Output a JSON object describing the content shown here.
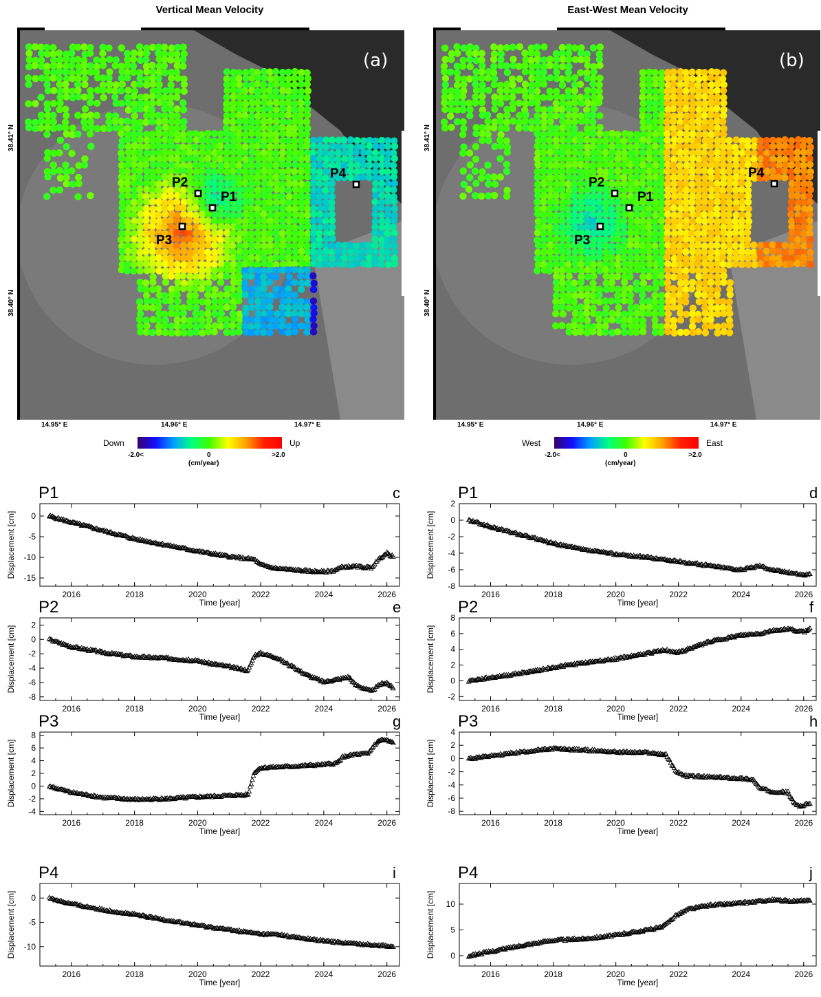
{
  "maps": [
    {
      "title": "Vertical Mean Velocity",
      "panel": "(a)",
      "lat_labels": [
        "38.41° N",
        "38.40° N"
      ],
      "lon_labels": [
        "14.95° E",
        "14.96° E",
        "14.97° E"
      ],
      "points": [
        "P1",
        "P2",
        "P3",
        "P4"
      ],
      "colorbar": {
        "left": "Down",
        "right": "Up",
        "min": "-2.0<",
        "mid": "0",
        "max": ">2.0",
        "unit": "(cm/year)"
      }
    },
    {
      "title": "East-West Mean Velocity",
      "panel": "(b)",
      "lat_labels": [
        "38.41° N",
        "38.40° N"
      ],
      "lon_labels": [
        "14.95° E",
        "14.96° E",
        "14.97° E"
      ],
      "points": [
        "P1",
        "P2",
        "P3",
        "P4"
      ],
      "colorbar": {
        "left": "West",
        "right": "East",
        "min": "-2.0<",
        "mid": "0",
        "max": ">2.0",
        "unit": "(cm/year)"
      }
    }
  ],
  "chart_data": [
    {
      "type": "scatter",
      "point": "P1",
      "letter": "c",
      "ylabel": "Displacement [cm]",
      "xlabel": "Time [year]",
      "xlim": [
        2015,
        2026.4
      ],
      "ylim": [
        -17,
        3
      ],
      "yticks": [
        0,
        -5,
        -10,
        -15
      ],
      "xticks": [
        2016,
        2018,
        2020,
        2022,
        2024,
        2026
      ],
      "x": [
        2015.3,
        2016,
        2017,
        2018,
        2019,
        2020,
        2021,
        2021.8,
        2022,
        2022.5,
        2023,
        2023.5,
        2024,
        2024.3,
        2024.6,
        2025,
        2025.5,
        2025.8,
        2026,
        2026.2
      ],
      "y": [
        0,
        -1.5,
        -3.5,
        -5.5,
        -7,
        -8.5,
        -9.8,
        -10.5,
        -11.8,
        -12.7,
        -13,
        -13.3,
        -13.5,
        -13.2,
        -12.3,
        -12.2,
        -12.5,
        -10,
        -9,
        -9.8
      ]
    },
    {
      "type": "scatter",
      "point": "P1",
      "letter": "d",
      "ylabel": "Displacement [cm]",
      "xlabel": "Time [year]",
      "xlim": [
        2015,
        2026.4
      ],
      "ylim": [
        -8,
        2
      ],
      "yticks": [
        2,
        0,
        -2,
        -4,
        -6,
        -8
      ],
      "xticks": [
        2016,
        2018,
        2020,
        2022,
        2024,
        2026
      ],
      "x": [
        2015.3,
        2016,
        2017,
        2018,
        2019,
        2020,
        2021,
        2022,
        2023,
        2024,
        2024.6,
        2025,
        2025.5,
        2026,
        2026.2
      ],
      "y": [
        0,
        -0.8,
        -1.8,
        -2.8,
        -3.6,
        -4.1,
        -4.5,
        -5,
        -5.5,
        -6,
        -5.5,
        -6,
        -6.3,
        -6.6,
        -6.5
      ]
    },
    {
      "type": "scatter",
      "point": "P2",
      "letter": "e",
      "ylabel": "Displacement [cm]",
      "xlabel": "Time [year]",
      "xlim": [
        2015,
        2026.4
      ],
      "ylim": [
        -8.5,
        3
      ],
      "yticks": [
        2,
        0,
        -2,
        -4,
        -6,
        -8
      ],
      "xticks": [
        2016,
        2018,
        2020,
        2022,
        2024,
        2026
      ],
      "x": [
        2015.3,
        2016,
        2017,
        2018,
        2019,
        2020,
        2021,
        2021.6,
        2021.8,
        2022,
        2022.5,
        2023,
        2023.5,
        2024,
        2024.5,
        2024.8,
        2025,
        2025.5,
        2025.8,
        2026,
        2026.2
      ],
      "y": [
        0,
        -1,
        -1.8,
        -2.4,
        -2.6,
        -3,
        -3.8,
        -4.3,
        -2.2,
        -1.9,
        -2.5,
        -3.8,
        -5,
        -5.9,
        -5.5,
        -5.2,
        -6.3,
        -7.2,
        -6.2,
        -6,
        -6.8
      ]
    },
    {
      "type": "scatter",
      "point": "P2",
      "letter": "f",
      "ylabel": "Displacement [cm]",
      "xlabel": "Time [year]",
      "xlim": [
        2015,
        2026.4
      ],
      "ylim": [
        -2.5,
        8
      ],
      "yticks": [
        8,
        6,
        4,
        2,
        0,
        -2
      ],
      "xticks": [
        2016,
        2018,
        2020,
        2022,
        2024,
        2026
      ],
      "x": [
        2015.3,
        2016,
        2017,
        2018,
        2019,
        2020,
        2021,
        2021.6,
        2022,
        2023,
        2024,
        2024.6,
        2025,
        2025.5,
        2026,
        2026.2
      ],
      "y": [
        0,
        0.4,
        1,
        1.7,
        2.3,
        2.8,
        3.5,
        3.9,
        3.6,
        5,
        5.8,
        6,
        6.4,
        6.6,
        6.2,
        6.7
      ]
    },
    {
      "type": "scatter",
      "point": "P3",
      "letter": "g",
      "ylabel": "Displacement [cm]",
      "xlabel": "Time [year]",
      "xlim": [
        2015,
        2026.4
      ],
      "ylim": [
        -4.5,
        8.5
      ],
      "yticks": [
        8,
        6,
        4,
        2,
        0,
        -2,
        -4
      ],
      "xticks": [
        2016,
        2018,
        2020,
        2022,
        2024,
        2026
      ],
      "x": [
        2015.3,
        2016,
        2017,
        2018,
        2019,
        2020,
        2021,
        2021.6,
        2021.8,
        2022,
        2023,
        2024,
        2024.4,
        2024.6,
        2025,
        2025.4,
        2025.6,
        2025.8,
        2026,
        2026.2
      ],
      "y": [
        0,
        -1,
        -1.8,
        -2.1,
        -2,
        -1.7,
        -1.5,
        -1.3,
        2.2,
        2.9,
        3.1,
        3.4,
        3.6,
        4.6,
        5,
        5.1,
        6.5,
        7.3,
        7.2,
        6.8
      ]
    },
    {
      "type": "scatter",
      "point": "P3",
      "letter": "h",
      "ylabel": "Displacement [cm]",
      "xlabel": "Time [year]",
      "xlim": [
        2015,
        2026.4
      ],
      "ylim": [
        -8.5,
        4
      ],
      "yticks": [
        4,
        2,
        0,
        -2,
        -4,
        -6,
        -8
      ],
      "xticks": [
        2016,
        2018,
        2020,
        2022,
        2024,
        2026
      ],
      "x": [
        2015.3,
        2016,
        2017,
        2018,
        2019,
        2020,
        2021,
        2021.6,
        2021.9,
        2022.2,
        2023,
        2024,
        2024.4,
        2024.6,
        2025,
        2025.5,
        2025.7,
        2025.9,
        2026.2
      ],
      "y": [
        0,
        0.4,
        1,
        1.5,
        1.3,
        1,
        0.9,
        0.6,
        -1.8,
        -2.6,
        -2.8,
        -3,
        -3.2,
        -4.5,
        -5,
        -5.1,
        -6.8,
        -7.2,
        -6.8
      ]
    },
    {
      "type": "scatter",
      "point": "P4",
      "letter": "i",
      "ylabel": "Displacement [cm]",
      "xlabel": "Time [year]",
      "xlim": [
        2015,
        2026.4
      ],
      "ylim": [
        -14,
        3
      ],
      "yticks": [
        0,
        -5,
        -10
      ],
      "xticks": [
        2016,
        2018,
        2020,
        2022,
        2024,
        2026
      ],
      "x": [
        2015.3,
        2016,
        2017,
        2018,
        2019,
        2020,
        2021,
        2022,
        2022.6,
        2023,
        2024,
        2025,
        2026,
        2026.2
      ],
      "y": [
        0,
        -1.2,
        -2.4,
        -3.4,
        -4.5,
        -5.6,
        -6.5,
        -7.4,
        -7.5,
        -8,
        -8.8,
        -9.4,
        -9.8,
        -10
      ]
    },
    {
      "type": "scatter",
      "point": "P4",
      "letter": "j",
      "ylabel": "Displacement [cm]",
      "xlabel": "Time [year]",
      "xlim": [
        2015,
        2026.4
      ],
      "ylim": [
        -2,
        14
      ],
      "yticks": [
        0,
        5,
        10
      ],
      "xticks": [
        2016,
        2018,
        2020,
        2022,
        2024,
        2026
      ],
      "x": [
        2015.3,
        2016,
        2017,
        2018,
        2019,
        2020,
        2021,
        2021.5,
        2021.9,
        2022.3,
        2023,
        2024,
        2025,
        2025.5,
        2026,
        2026.2
      ],
      "y": [
        0,
        0.8,
        2,
        3,
        3.3,
        4,
        5,
        5.6,
        7.8,
        9,
        9.8,
        10.2,
        10.8,
        10.6,
        10.6,
        10.7
      ]
    }
  ]
}
